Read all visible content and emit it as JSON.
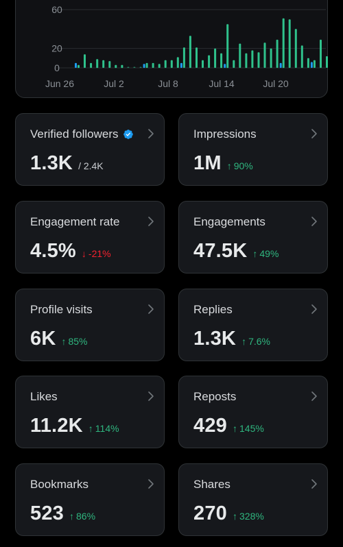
{
  "chart_data": {
    "type": "bar",
    "ylim": [
      0,
      63
    ],
    "yticks": [
      "60",
      "20",
      "0"
    ],
    "ytick_values": [
      60,
      20,
      0
    ],
    "x_tick_labels": [
      "Jun 26",
      "Jul 2",
      "Jul 8",
      "Jul 14",
      "Jul 20"
    ],
    "series": [
      {
        "color": "#2fc28c",
        "values": [
          3,
          14,
          5,
          9,
          8,
          7,
          3,
          3,
          0,
          0,
          0,
          5,
          5,
          4,
          8,
          8,
          11,
          21,
          33,
          21,
          8,
          13,
          20,
          15,
          45,
          8,
          25,
          15,
          18,
          16,
          26,
          20,
          29,
          51,
          50,
          40,
          23,
          10,
          8,
          29,
          12
        ]
      },
      {
        "color": "#1d9bf0",
        "values": [
          5,
          0,
          0,
          0,
          0,
          0,
          0,
          0,
          0,
          0,
          0,
          4,
          0,
          0,
          0,
          0,
          0,
          5,
          0,
          0,
          0,
          0,
          0,
          0,
          4,
          0,
          0,
          0,
          0,
          0,
          0,
          0,
          0,
          5,
          0,
          0,
          0,
          0,
          6,
          0,
          0
        ]
      }
    ]
  },
  "cards": [
    {
      "title": "Verified followers",
      "verified": true,
      "value": "1.3K",
      "sub": "/ 2.4K",
      "delta": "",
      "dir": ""
    },
    {
      "title": "Impressions",
      "value": "1M",
      "sub": "",
      "delta": "90%",
      "dir": "up"
    },
    {
      "title": "Engagement rate",
      "value": "4.5%",
      "sub": "",
      "delta": "-21%",
      "dir": "down"
    },
    {
      "title": "Engagements",
      "value": "47.5K",
      "sub": "",
      "delta": "49%",
      "dir": "up"
    },
    {
      "title": "Profile visits",
      "value": "6K",
      "sub": "",
      "delta": "85%",
      "dir": "up"
    },
    {
      "title": "Replies",
      "value": "1.3K",
      "sub": "",
      "delta": "7.6%",
      "dir": "up"
    },
    {
      "title": "Likes",
      "value": "11.2K",
      "sub": "",
      "delta": "114%",
      "dir": "up"
    },
    {
      "title": "Reposts",
      "value": "429",
      "sub": "",
      "delta": "145%",
      "dir": "up"
    },
    {
      "title": "Bookmarks",
      "value": "523",
      "sub": "",
      "delta": "86%",
      "dir": "up"
    },
    {
      "title": "Shares",
      "value": "270",
      "sub": "",
      "delta": "328%",
      "dir": "up"
    }
  ],
  "colors": {
    "up": "#2fb67f",
    "down": "#f4212e",
    "verified": "#1d9bf0"
  },
  "icons": {
    "chevron": "chevron-right-icon",
    "verified": "verified-badge-icon"
  }
}
